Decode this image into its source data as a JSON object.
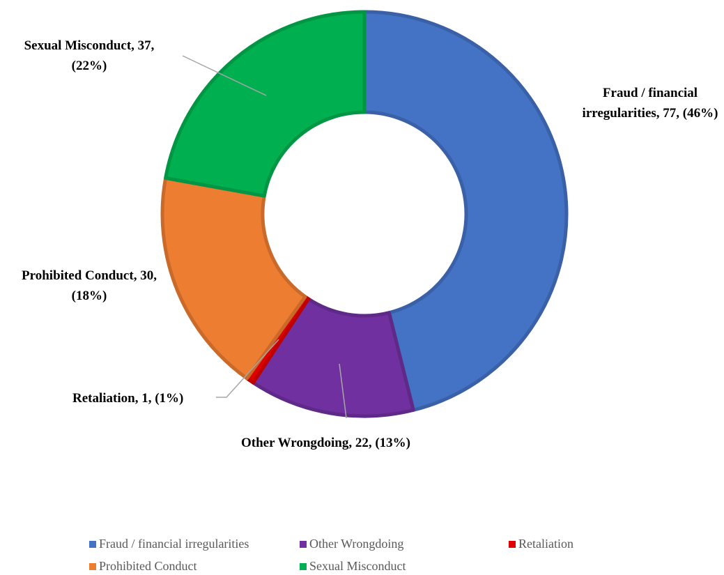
{
  "chart_data": {
    "type": "donut",
    "categories": [
      "Fraud / financial irregularities",
      "Other Wrongdoing",
      "Retaliation",
      "Prohibited Conduct",
      "Sexual Misconduct"
    ],
    "values": [
      77,
      22,
      1,
      30,
      37
    ],
    "value_labels": [
      "Fraud / financial irregularities, 77, (46%)",
      "Other Wrongdoing, 22, (13%)",
      "Retaliation, 1, (1%)",
      "Prohibited Conduct, 30, (18%)",
      "Sexual Misconduct, 37, (22%)"
    ],
    "colors": [
      "#4472c4",
      "#7030a0",
      "#e00000",
      "#ed7d31",
      "#00b050"
    ],
    "legend": "bottom"
  }
}
